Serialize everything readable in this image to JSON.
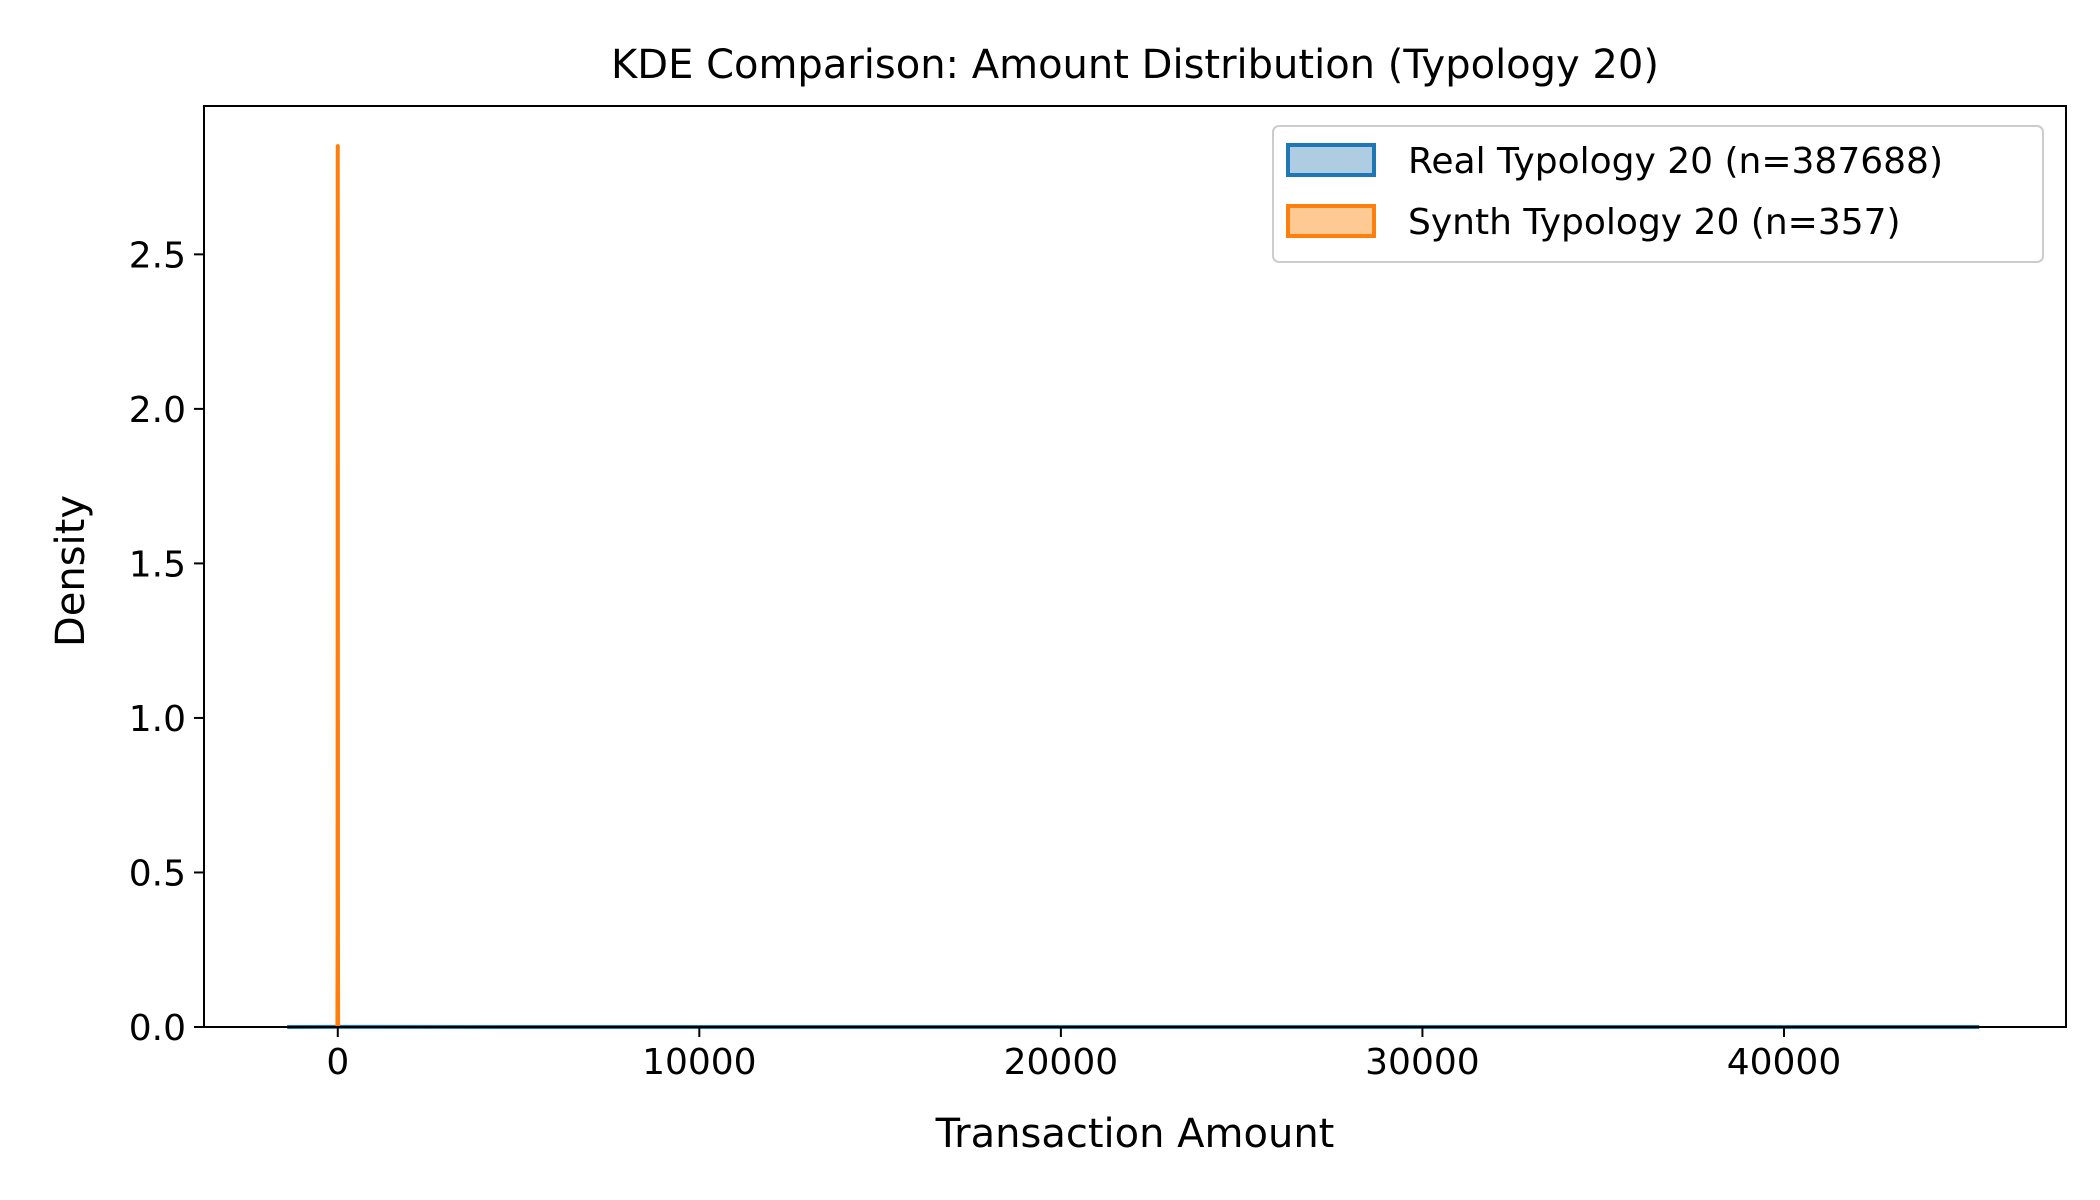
{
  "chart_data": {
    "type": "area",
    "title": "KDE Comparison: Amount Distribution (Typology 20)",
    "xlabel": "Transaction Amount",
    "ylabel": "Density",
    "xlim": [
      -3700,
      47800
    ],
    "ylim": [
      0,
      2.98
    ],
    "xticks": [
      0,
      10000,
      20000,
      30000,
      40000
    ],
    "xtick_labels": [
      "0",
      "10000",
      "20000",
      "30000",
      "40000"
    ],
    "yticks": [
      0.0,
      0.5,
      1.0,
      1.5,
      2.0,
      2.5
    ],
    "ytick_labels": [
      "0.0",
      "0.5",
      "1.0",
      "1.5",
      "2.0",
      "2.5"
    ],
    "grid": false,
    "legend_position": "top-right",
    "series": [
      {
        "name": "Real Typology 20 (n=387688)",
        "color": "#1f77b4",
        "fill_color": "#aecde3",
        "x": [
          -1400,
          0,
          5000,
          10000,
          20000,
          30000,
          40000,
          45400
        ],
        "y": [
          0.0,
          0.0003,
          0.0001,
          5e-05,
          2e-05,
          1e-05,
          5e-06,
          0.0
        ]
      },
      {
        "name": "Synth Typology 20 (n=357)",
        "color": "#ff7f0e",
        "fill_color": "#ffc994",
        "x": [
          -10,
          -5,
          -2,
          0,
          2,
          5,
          10
        ],
        "y": [
          0.0,
          0.3,
          2.2,
          2.85,
          2.2,
          0.3,
          0.0
        ]
      }
    ]
  }
}
